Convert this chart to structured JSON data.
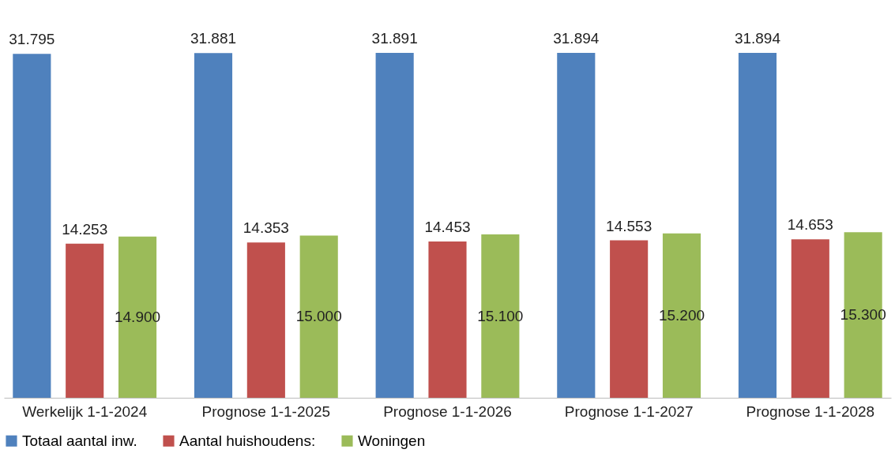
{
  "chart_data": {
    "type": "bar",
    "categories": [
      "Werkelijk 1-1-2024",
      "Prognose 1-1-2025",
      "Prognose 1-1-2026",
      "Prognose 1-1-2027",
      "Prognose 1-1-2028"
    ],
    "series": [
      {
        "name": "Totaal aantal inw.",
        "color": "#4f81bd",
        "values": [
          31795,
          31881,
          31891,
          31894,
          31894
        ],
        "value_labels": [
          "31.795",
          "31.881",
          "31.891",
          "31.894",
          "31.894"
        ]
      },
      {
        "name": "Aantal huishoudens:",
        "color": "#c0504d",
        "values": [
          14253,
          14353,
          14453,
          14553,
          14653
        ],
        "value_labels": [
          "14.253",
          "14.353",
          "14.453",
          "14.553",
          "14.653"
        ]
      },
      {
        "name": "Woningen",
        "color": "#9bbb59",
        "values": [
          14900,
          15000,
          15100,
          15200,
          15300
        ],
        "value_labels": [
          "14.900",
          "15.000",
          "15.100",
          "15.200",
          "15.300"
        ]
      }
    ],
    "legend": "bottom",
    "grid": false
  }
}
